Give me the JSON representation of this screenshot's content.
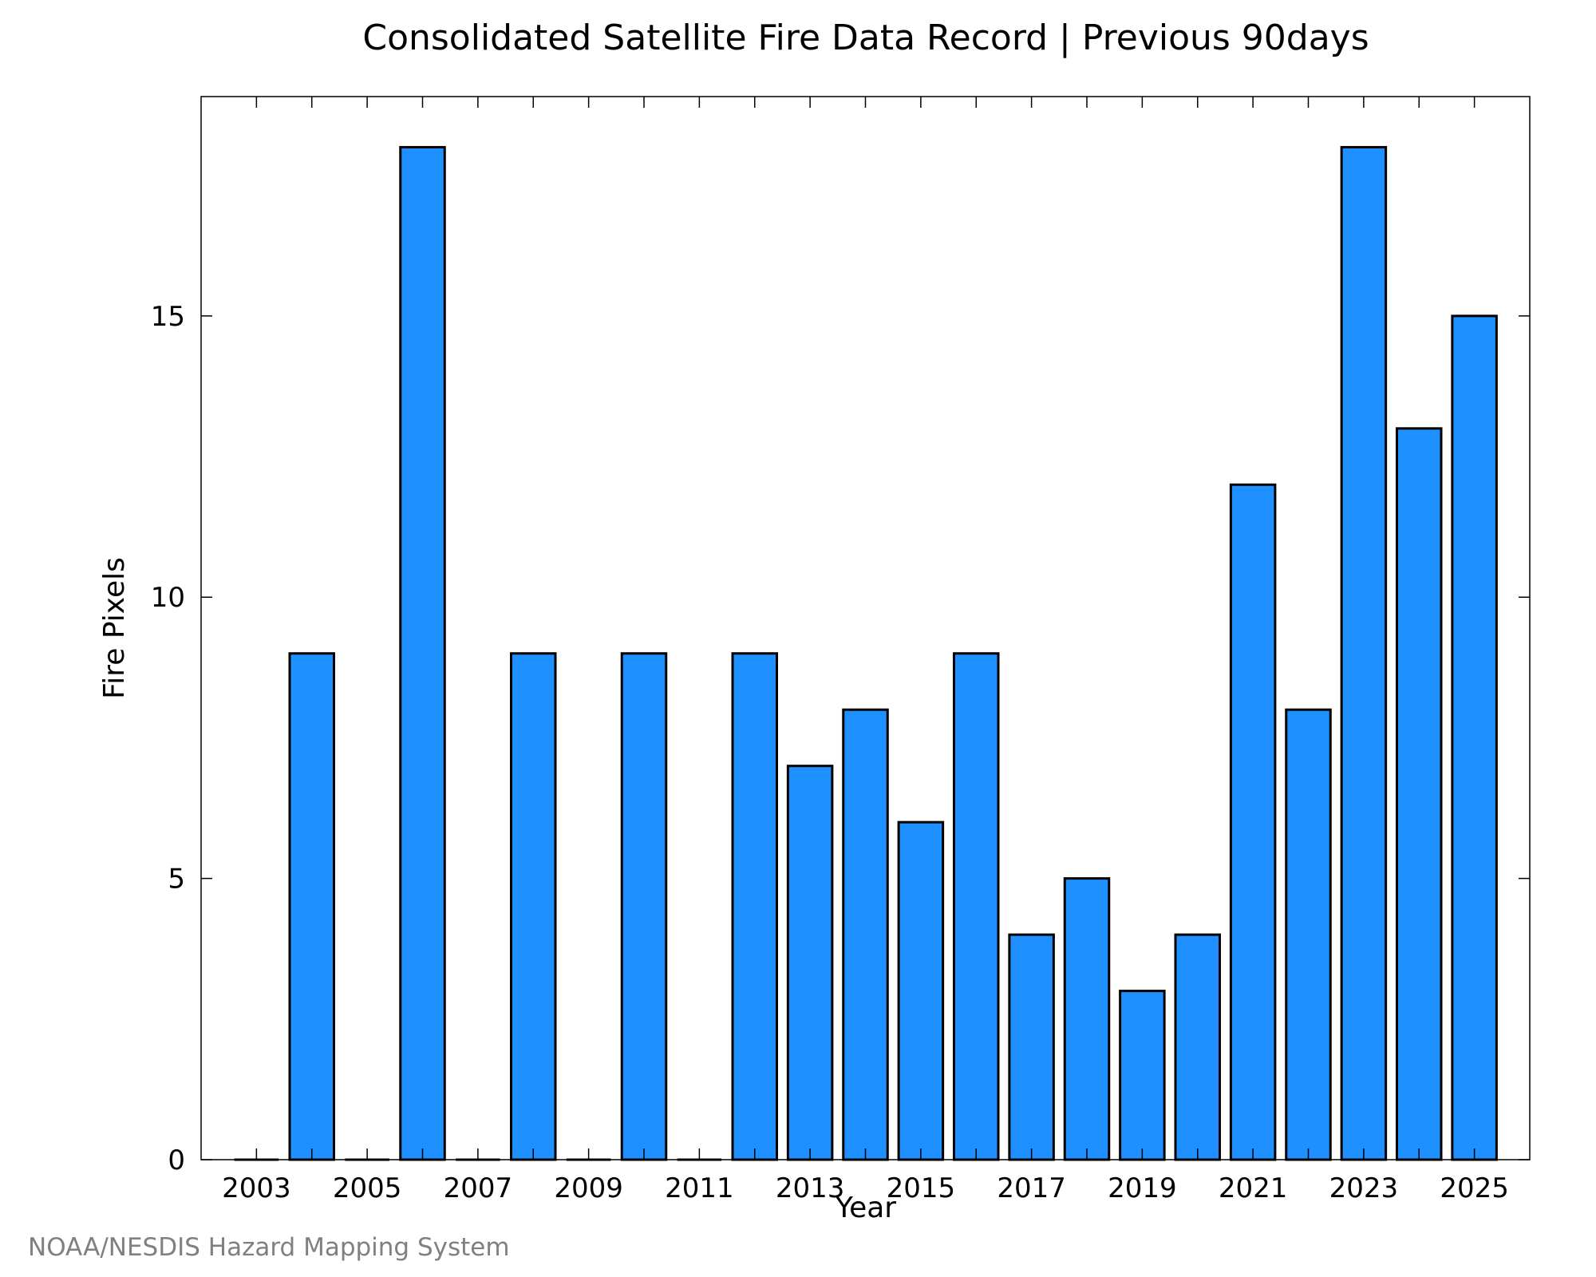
{
  "chart_data": {
    "type": "bar",
    "title": "Consolidated Satellite Fire Data Record | Previous 90days",
    "xlabel": "Year",
    "ylabel": "Fire Pixels",
    "credit": "NOAA/NESDIS Hazard Mapping System",
    "categories": [
      "2003",
      "2004",
      "2005",
      "2006",
      "2007",
      "2008",
      "2009",
      "2010",
      "2011",
      "2012",
      "2013",
      "2014",
      "2015",
      "2016",
      "2017",
      "2018",
      "2019",
      "2020",
      "2021",
      "2022",
      "2023",
      "2024",
      "2025"
    ],
    "values": [
      0,
      9,
      0,
      18,
      0,
      9,
      0,
      9,
      0,
      9,
      7,
      8,
      6,
      9,
      4,
      5,
      3,
      4,
      12,
      8,
      18,
      13,
      15
    ],
    "x_tick_labels": [
      "2003",
      "2005",
      "2007",
      "2009",
      "2011",
      "2013",
      "2015",
      "2017",
      "2019",
      "2021",
      "2023",
      "2025"
    ],
    "y_ticks": [
      0,
      5,
      10,
      15
    ],
    "y_tick_labels": [
      "0",
      "5",
      "10",
      "15"
    ],
    "xlim": [
      2002,
      2026
    ],
    "ylim": [
      0,
      18.9
    ],
    "grid": false,
    "legend": "none",
    "colors": {
      "bar_fill": "#1e90ff",
      "bar_stroke": "#000000",
      "axis": "#000000",
      "text": "#000000",
      "credit_text": "#808080"
    }
  }
}
